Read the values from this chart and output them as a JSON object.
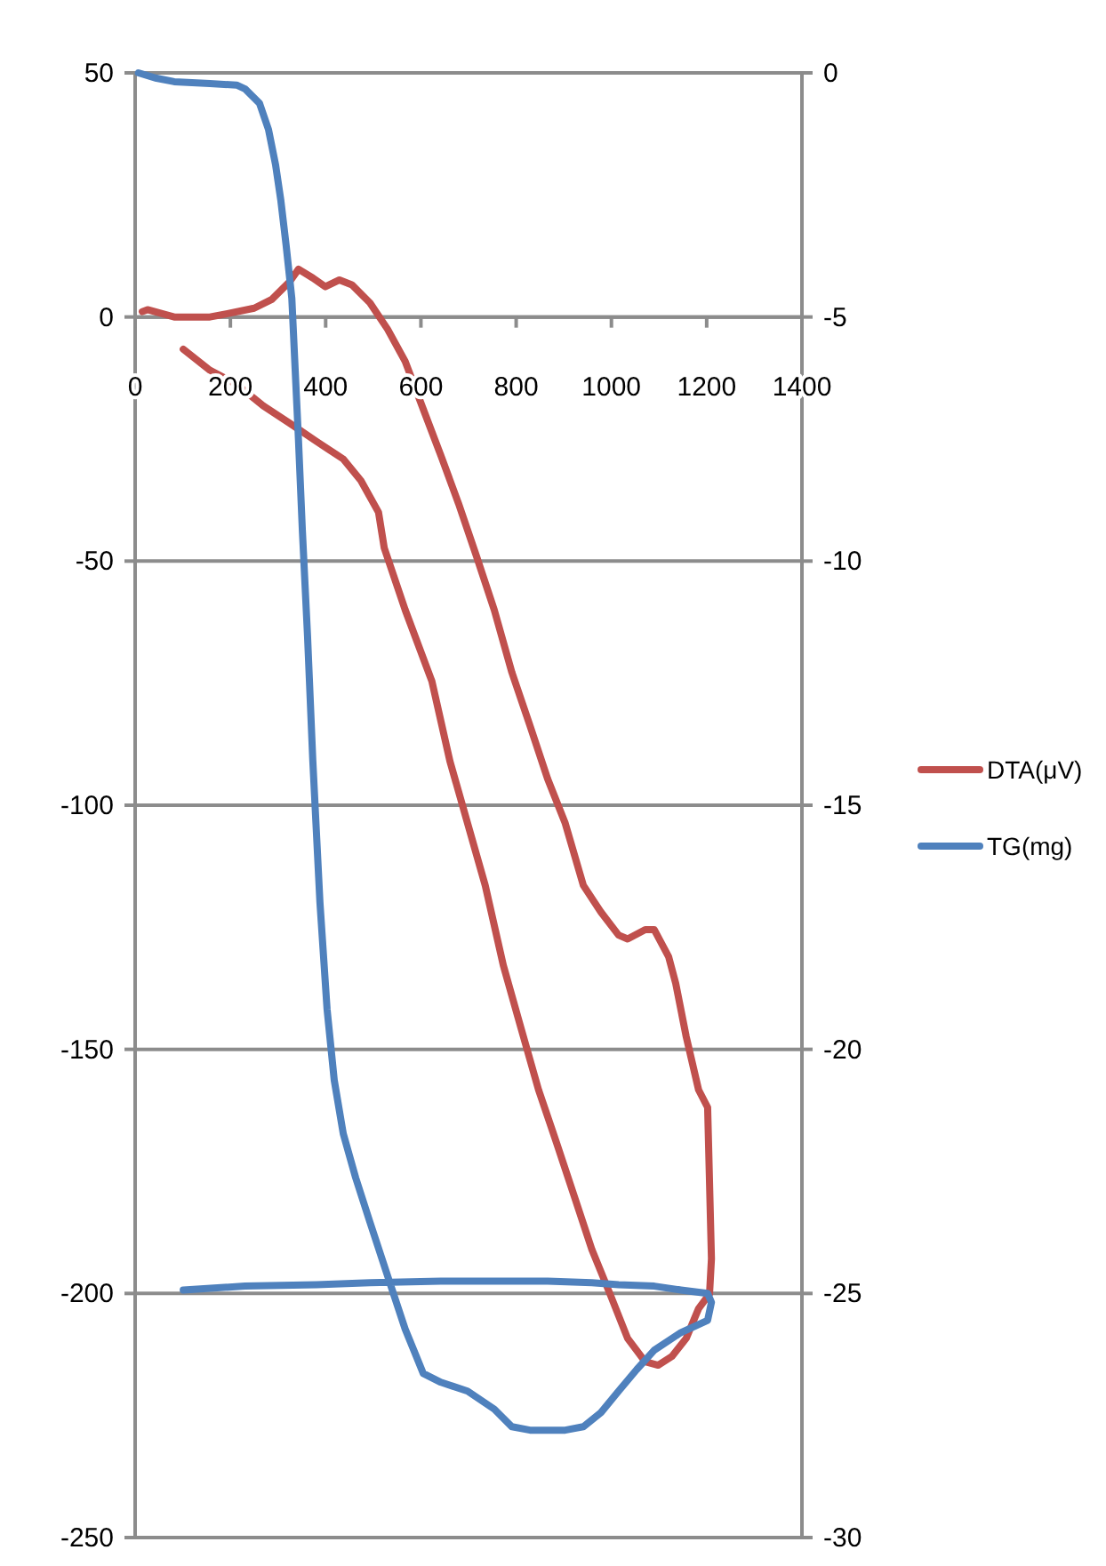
{
  "chart_data": {
    "type": "line",
    "xlim": [
      0,
      1400
    ],
    "xticks": [
      0,
      200,
      400,
      600,
      800,
      1000,
      1200,
      1400
    ],
    "ylim": [
      -250,
      50
    ],
    "yticks": [
      -250,
      -200,
      -150,
      -100,
      -50,
      0,
      50
    ],
    "y2lim": [
      -30,
      0
    ],
    "y2ticks": [
      -30,
      -25,
      -20,
      -15,
      -10,
      -5,
      0
    ],
    "grid": "y",
    "legend": "right",
    "marker": "none",
    "line_style": "solid",
    "series": [
      {
        "name": "DTA(μV)",
        "color": "#c0504d",
        "x": [
          15,
          26,
          82,
          157,
          194,
          250,
          287,
          325,
          343,
          373,
          399,
          429,
          455,
          493,
          530,
          567,
          605,
          642,
          679,
          717,
          754,
          791,
          829,
          866,
          903,
          941,
          978,
          1015,
          1034,
          1071,
          1090,
          1120,
          1135,
          1157,
          1183,
          1202,
          1210,
          1206,
          1183,
          1157,
          1127,
          1098,
          1071,
          1034,
          997,
          959,
          922,
          885,
          847,
          810,
          773,
          735,
          698,
          661,
          623,
          567,
          523,
          511,
          474,
          437,
          381,
          325,
          269,
          213,
          157,
          101
        ],
        "values": [
          1.1,
          1.5,
          0,
          0,
          0.7,
          1.8,
          3.6,
          7.3,
          9.8,
          8.0,
          6.2,
          7.6,
          6.6,
          2.9,
          -2.5,
          -9.1,
          -18.9,
          -28.4,
          -38.2,
          -49.1,
          -60.0,
          -72.8,
          -83.7,
          -94.6,
          -103.7,
          -116.4,
          -121.9,
          -126.6,
          -127.4,
          -125.5,
          -125.5,
          -131.0,
          -136.5,
          -147.4,
          -158.3,
          -161.9,
          -192.9,
          -200.1,
          -203.1,
          -209.2,
          -212.9,
          -214.7,
          -214.0,
          -209.2,
          -200.1,
          -191.0,
          -180.1,
          -169.2,
          -158.3,
          -145.6,
          -132.8,
          -116.4,
          -103.7,
          -91.0,
          -74.6,
          -60.0,
          -47.3,
          -40.0,
          -33.5,
          -29.1,
          -25.5,
          -21.8,
          -18.2,
          -13.8,
          -10.9,
          -6.6
        ]
      },
      {
        "name": "TG(mg)",
        "color": "#4f81bd",
        "axis": "y2",
        "x": [
          7,
          45,
          82,
          157,
          213,
          231,
          261,
          280,
          295,
          306,
          317,
          329,
          336,
          343,
          351,
          362,
          373,
          388,
          403,
          418,
          437,
          463,
          493,
          530,
          567,
          605,
          642,
          698,
          754,
          791,
          829,
          903,
          941,
          978,
          1015,
          1053,
          1090,
          1146,
          1202,
          1210,
          1202,
          1146,
          1090,
          1015,
          959,
          866,
          642,
          493,
          381,
          231,
          101
        ],
        "values": [
          0,
          -0.11,
          -0.18,
          -0.22,
          -0.25,
          -0.33,
          -0.62,
          -1.16,
          -1.89,
          -2.62,
          -3.53,
          -4.62,
          -6.08,
          -7.53,
          -9.35,
          -11.54,
          -14.08,
          -16.99,
          -19.18,
          -20.63,
          -21.73,
          -22.63,
          -23.54,
          -24.64,
          -25.73,
          -26.64,
          -26.82,
          -27.0,
          -27.37,
          -27.73,
          -27.8,
          -27.8,
          -27.73,
          -27.44,
          -27.0,
          -26.56,
          -26.16,
          -25.8,
          -25.55,
          -25.18,
          -25.0,
          -24.93,
          -24.85,
          -24.82,
          -24.78,
          -24.75,
          -24.75,
          -24.78,
          -24.82,
          -24.85,
          -24.93
        ]
      }
    ]
  }
}
